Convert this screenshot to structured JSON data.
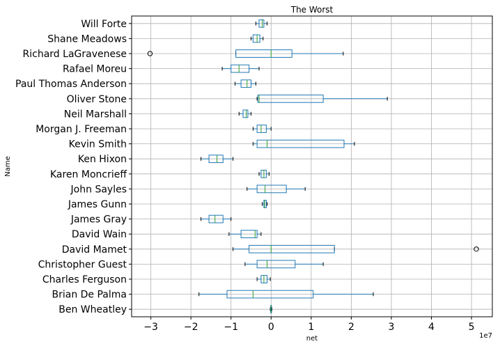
{
  "chart_data": {
    "type": "box",
    "orientation": "horizontal",
    "title": "The Worst",
    "xlabel": "net",
    "ylabel": "Name",
    "x_offset_label": "1e7",
    "x_scale": 10000000,
    "xlim": [
      -3.48,
      5.52
    ],
    "xticks": [
      -3,
      -2,
      -1,
      0,
      1,
      2,
      3,
      4,
      5
    ],
    "xtick_labels": [
      "−3",
      "−2",
      "−1",
      "0",
      "1",
      "2",
      "3",
      "4",
      "5"
    ],
    "grid": true,
    "box_color": "#1f77b4",
    "median_color": "#2ca02c",
    "categories": [
      "Ben Wheatley",
      "Brian De Palma",
      "Charles Ferguson",
      "Christopher Guest",
      "David Mamet",
      "David Wain",
      "James Gray",
      "James Gunn",
      "John Sayles",
      "Karen Moncrieff",
      "Ken Hixon",
      "Kevin Smith",
      "Morgan J. Freeman",
      "Neil Marshall",
      "Oliver Stone",
      "Paul Thomas Anderson",
      "Rafael Moreu",
      "Richard LaGravenese",
      "Shane Meadows",
      "Will Forte"
    ],
    "boxes": [
      {
        "name": "Ben Wheatley",
        "whislo": -0.02,
        "q1": -0.01,
        "med": 0.0,
        "q3": 0.01,
        "whishi": 0.02,
        "fliers": []
      },
      {
        "name": "Brian De Palma",
        "whislo": -1.8,
        "q1": -1.1,
        "med": -0.45,
        "q3": 1.05,
        "whishi": 2.55,
        "fliers": []
      },
      {
        "name": "Charles Ferguson",
        "whislo": -0.35,
        "q1": -0.25,
        "med": -0.18,
        "q3": -0.1,
        "whishi": -0.02,
        "fliers": []
      },
      {
        "name": "Christopher Guest",
        "whislo": -0.65,
        "q1": -0.35,
        "med": -0.1,
        "q3": 0.6,
        "whishi": 1.3,
        "fliers": []
      },
      {
        "name": "David Mamet",
        "whislo": -0.95,
        "q1": -0.55,
        "med": 0.0,
        "q3": 1.58,
        "whishi": 1.58,
        "fliers": [
          5.12
        ]
      },
      {
        "name": "David Wain",
        "whislo": -1.05,
        "q1": -0.75,
        "med": -0.4,
        "q3": -0.35,
        "whishi": -0.25,
        "fliers": []
      },
      {
        "name": "James Gray",
        "whislo": -1.75,
        "q1": -1.55,
        "med": -1.4,
        "q3": -1.2,
        "whishi": -1.0,
        "fliers": []
      },
      {
        "name": "James Gunn",
        "whislo": -0.22,
        "q1": -0.18,
        "med": -0.16,
        "q3": -0.12,
        "whishi": -0.1,
        "fliers": []
      },
      {
        "name": "John Sayles",
        "whislo": -0.6,
        "q1": -0.35,
        "med": -0.15,
        "q3": 0.38,
        "whishi": 0.85,
        "fliers": []
      },
      {
        "name": "Karen Moncrieff",
        "whislo": -0.3,
        "q1": -0.25,
        "med": -0.18,
        "q3": -0.12,
        "whishi": -0.05,
        "fliers": []
      },
      {
        "name": "Ken Hixon",
        "whislo": -1.75,
        "q1": -1.55,
        "med": -1.35,
        "q3": -1.2,
        "whishi": -0.95,
        "fliers": []
      },
      {
        "name": "Kevin Smith",
        "whislo": -0.45,
        "q1": -0.35,
        "med": -0.1,
        "q3": 1.82,
        "whishi": 2.08,
        "fliers": []
      },
      {
        "name": "Morgan J. Freeman",
        "whislo": -0.45,
        "q1": -0.35,
        "med": -0.25,
        "q3": -0.12,
        "whishi": 0.0,
        "fliers": []
      },
      {
        "name": "Neil Marshall",
        "whislo": -0.8,
        "q1": -0.7,
        "med": -0.62,
        "q3": -0.58,
        "whishi": -0.5,
        "fliers": []
      },
      {
        "name": "Oliver Stone",
        "whislo": -0.35,
        "q1": -0.33,
        "med": -0.3,
        "q3": 1.3,
        "whishi": 2.9,
        "fliers": []
      },
      {
        "name": "Paul Thomas Anderson",
        "whislo": -0.9,
        "q1": -0.75,
        "med": -0.6,
        "q3": -0.5,
        "whishi": -0.38,
        "fliers": []
      },
      {
        "name": "Rafael Moreu",
        "whislo": -1.22,
        "q1": -1.0,
        "med": -0.8,
        "q3": -0.55,
        "whishi": -0.3,
        "fliers": []
      },
      {
        "name": "Richard LaGravenese",
        "whislo": -0.88,
        "q1": -0.88,
        "med": 0.0,
        "q3": 0.52,
        "whishi": 1.8,
        "fliers": [
          -3.02
        ]
      },
      {
        "name": "Shane Meadows",
        "whislo": -0.5,
        "q1": -0.45,
        "med": -0.35,
        "q3": -0.28,
        "whishi": -0.2,
        "fliers": []
      },
      {
        "name": "Will Forte",
        "whislo": -0.38,
        "q1": -0.3,
        "med": -0.22,
        "q3": -0.18,
        "whishi": -0.1,
        "fliers": []
      }
    ]
  }
}
